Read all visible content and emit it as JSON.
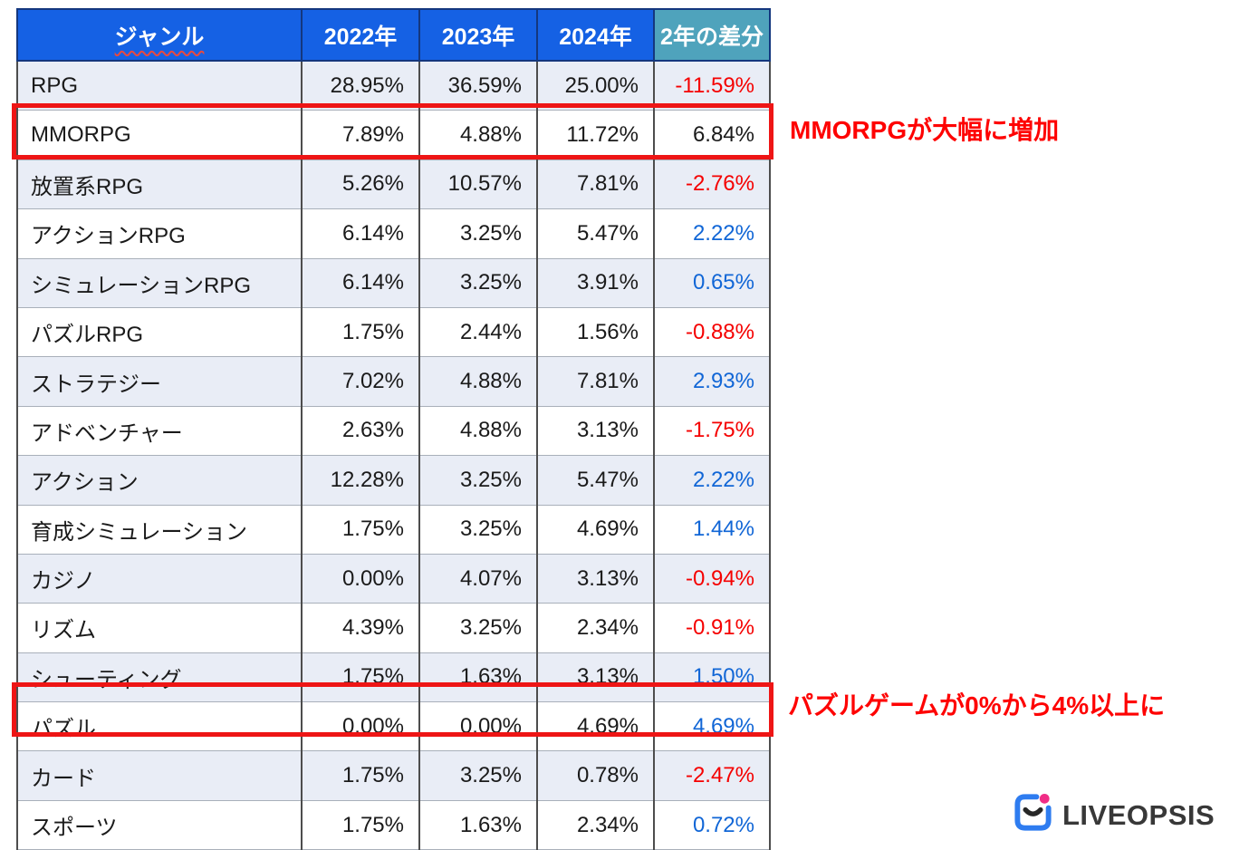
{
  "chart_data": {
    "type": "table",
    "columns": [
      "ジャンル",
      "2022年",
      "2023年",
      "2024年",
      "2年の差分"
    ],
    "rows": [
      {
        "genre": "RPG",
        "y2022": "28.95%",
        "y2023": "36.59%",
        "y2024": "25.00%",
        "diff": "-11.59%",
        "diff_color": "red",
        "highlighted": false
      },
      {
        "genre": "MMORPG",
        "y2022": "7.89%",
        "y2023": "4.88%",
        "y2024": "11.72%",
        "diff": "6.84%",
        "diff_color": "black",
        "highlighted": true
      },
      {
        "genre": "放置系RPG",
        "y2022": "5.26%",
        "y2023": "10.57%",
        "y2024": "7.81%",
        "diff": "-2.76%",
        "diff_color": "red",
        "highlighted": false
      },
      {
        "genre": "アクションRPG",
        "y2022": "6.14%",
        "y2023": "3.25%",
        "y2024": "5.47%",
        "diff": "2.22%",
        "diff_color": "blue",
        "highlighted": false
      },
      {
        "genre": "シミュレーションRPG",
        "y2022": "6.14%",
        "y2023": "3.25%",
        "y2024": "3.91%",
        "diff": "0.65%",
        "diff_color": "blue",
        "highlighted": false
      },
      {
        "genre": "パズルRPG",
        "y2022": "1.75%",
        "y2023": "2.44%",
        "y2024": "1.56%",
        "diff": "-0.88%",
        "diff_color": "red",
        "highlighted": false
      },
      {
        "genre": "ストラテジー",
        "y2022": "7.02%",
        "y2023": "4.88%",
        "y2024": "7.81%",
        "diff": "2.93%",
        "diff_color": "blue",
        "highlighted": false
      },
      {
        "genre": "アドベンチャー",
        "y2022": "2.63%",
        "y2023": "4.88%",
        "y2024": "3.13%",
        "diff": "-1.75%",
        "diff_color": "red",
        "highlighted": false
      },
      {
        "genre": "アクション",
        "y2022": "12.28%",
        "y2023": "3.25%",
        "y2024": "5.47%",
        "diff": "2.22%",
        "diff_color": "blue",
        "highlighted": false
      },
      {
        "genre": "育成シミュレーション",
        "y2022": "1.75%",
        "y2023": "3.25%",
        "y2024": "4.69%",
        "diff": "1.44%",
        "diff_color": "blue",
        "highlighted": false
      },
      {
        "genre": "カジノ",
        "y2022": "0.00%",
        "y2023": "4.07%",
        "y2024": "3.13%",
        "diff": "-0.94%",
        "diff_color": "red",
        "highlighted": false
      },
      {
        "genre": "リズム",
        "y2022": "4.39%",
        "y2023": "3.25%",
        "y2024": "2.34%",
        "diff": "-0.91%",
        "diff_color": "red",
        "highlighted": false
      },
      {
        "genre": "シューティング",
        "y2022": "1.75%",
        "y2023": "1.63%",
        "y2024": "3.13%",
        "diff": "1.50%",
        "diff_color": "blue",
        "highlighted": false
      },
      {
        "genre": "パズル",
        "y2022": "0.00%",
        "y2023": "0.00%",
        "y2024": "4.69%",
        "diff": "4.69%",
        "diff_color": "blue",
        "highlighted": true
      },
      {
        "genre": "カード",
        "y2022": "1.75%",
        "y2023": "3.25%",
        "y2024": "0.78%",
        "diff": "-2.47%",
        "diff_color": "red",
        "highlighted": false
      },
      {
        "genre": "スポーツ",
        "y2022": "1.75%",
        "y2023": "1.63%",
        "y2024": "2.34%",
        "diff": "0.72%",
        "diff_color": "blue",
        "highlighted": false
      }
    ],
    "annotations": [
      {
        "text": "MMORPGが大幅に増加"
      },
      {
        "text": "パズルゲームが0%から4%以上に"
      }
    ],
    "layout": {
      "legend": "none",
      "grid": "table-borders"
    }
  },
  "logo": {
    "text": "LIVEOPSIS",
    "icon": "liveopsis-smile-icon"
  },
  "colors": {
    "header_blue": "#1561e4",
    "header_teal": "#4fa3bc",
    "positive_blue": "#1166d6",
    "negative_red": "#f50000",
    "annotation_red": "#fe0202",
    "highlight_box_red": "#ee1515",
    "zebra_row": "#e9edf6",
    "logo_blue": "#2e7cf0",
    "logo_pink": "#f02d86"
  }
}
